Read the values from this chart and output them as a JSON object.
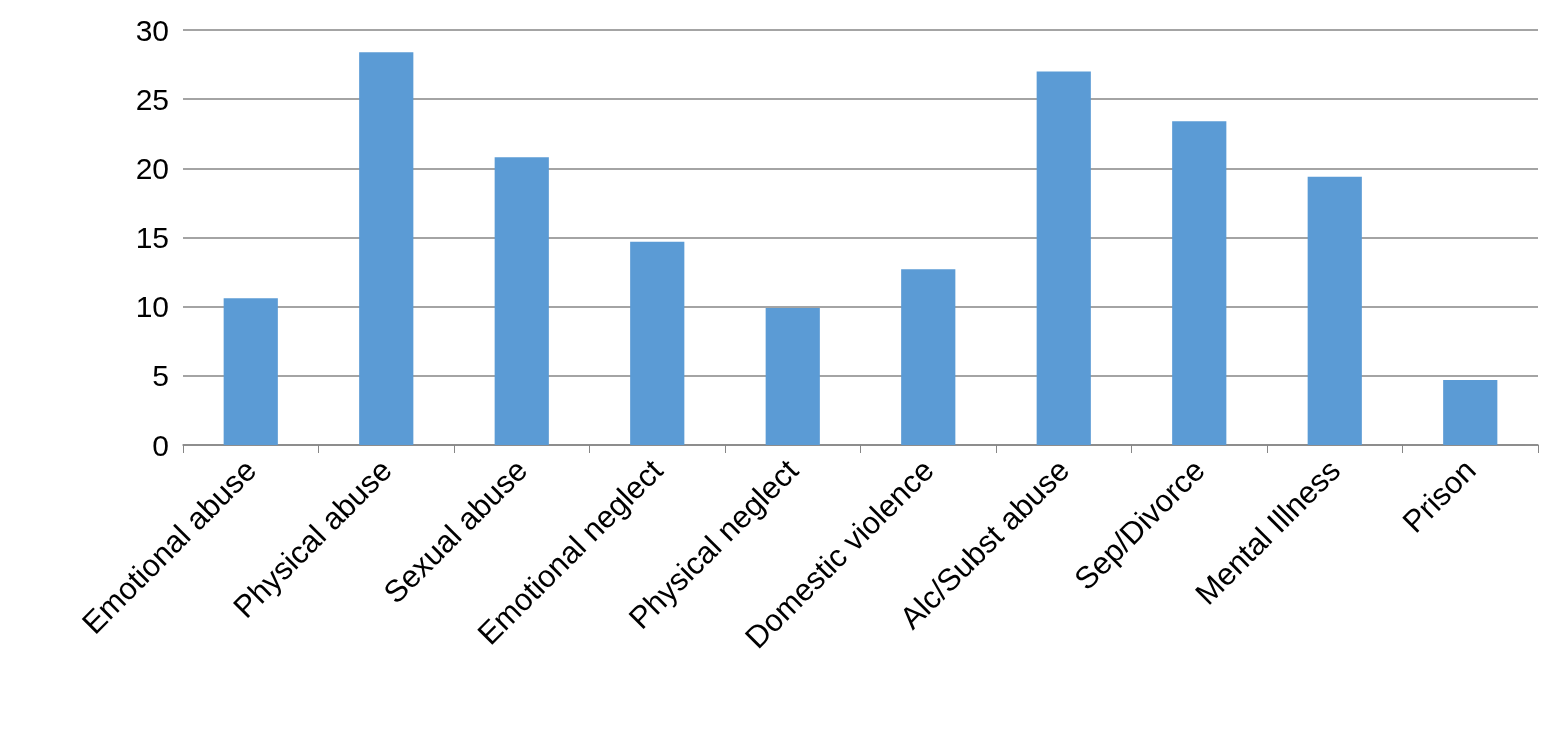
{
  "chart_data": {
    "type": "bar",
    "categories": [
      "Emotional abuse",
      "Physical abuse",
      "Sexual abuse",
      "Emotional neglect",
      "Physical neglect",
      "Domestic violence",
      "Alc/Subst abuse",
      "Sep/Divorce",
      "Mental Illness",
      "Prison"
    ],
    "values": [
      10.6,
      28.4,
      20.8,
      14.7,
      9.9,
      12.7,
      27.0,
      23.4,
      19.4,
      4.7
    ],
    "color": "#5b9bd5",
    "ylim": [
      0,
      30
    ],
    "yticks": [
      0,
      5,
      10,
      15,
      20,
      25,
      30
    ],
    "grid": "y"
  }
}
